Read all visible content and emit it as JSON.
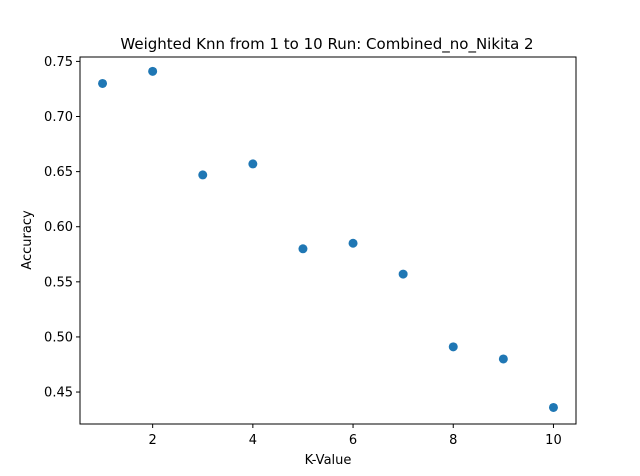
{
  "chart_data": {
    "type": "scatter",
    "title": "Weighted Knn from 1 to 10 Run: Combined_no_Nikita 2",
    "xlabel": "K-Value",
    "ylabel": "Accuracy",
    "xlim": [
      0.55,
      10.45
    ],
    "ylim": [
      0.421,
      0.754
    ],
    "xticks": [
      2,
      4,
      6,
      8,
      10
    ],
    "xtick_labels": [
      "2",
      "4",
      "6",
      "8",
      "10"
    ],
    "yticks": [
      0.45,
      0.5,
      0.55,
      0.6,
      0.65,
      0.7,
      0.75
    ],
    "ytick_labels": [
      "0.45",
      "0.50",
      "0.55",
      "0.60",
      "0.65",
      "0.70",
      "0.75"
    ],
    "grid": false,
    "marker_color": "#1f77b4",
    "series": [
      {
        "x": [
          1,
          2,
          3,
          4,
          5,
          6,
          7,
          8,
          9,
          10
        ],
        "y": [
          0.73,
          0.741,
          0.647,
          0.657,
          0.58,
          0.585,
          0.557,
          0.491,
          0.48,
          0.436
        ]
      }
    ]
  }
}
